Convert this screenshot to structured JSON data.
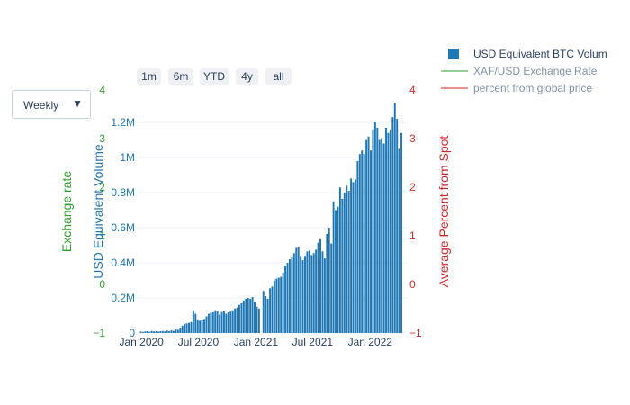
{
  "dropdown": {
    "value": "Weekly",
    "arrow_icon": "triangle-down-icon"
  },
  "range_buttons": [
    "1m",
    "6m",
    "YTD",
    "4y",
    "all"
  ],
  "legend": [
    {
      "label": "USD Equivalent BTC Volum",
      "color": "#1f77b4",
      "kind": "bar",
      "active": true
    },
    {
      "label": "XAF/USD Exchange Rate",
      "color": "#2ca02c",
      "kind": "line",
      "active": false
    },
    {
      "label": "percent from global price",
      "color": "#d62728",
      "kind": "line",
      "active": false
    }
  ],
  "colors": {
    "volume_axis": "#1f77b4",
    "exchange_axis": "#2ca02c",
    "percent_axis": "#d62728",
    "muted_legend": "#8592a6",
    "grid": "#ebf0f8"
  },
  "chart_data": {
    "type": "bar",
    "x_ticks": [
      "Jan 2020",
      "Jul 2020",
      "Jan 2021",
      "Jul 2021",
      "Jan 2022"
    ],
    "x_range": [
      "2019-12-20",
      "2022-05-01"
    ],
    "bar_interval": "weekly",
    "first_bar_date": "2019-12-30",
    "series": [
      {
        "name": "USD Equivalent BTC Volum",
        "axis": "y1",
        "values": [
          8000,
          6000,
          9000,
          10000,
          7000,
          12000,
          9000,
          11000,
          8000,
          10000,
          12000,
          9000,
          14000,
          10000,
          15000,
          12000,
          20000,
          18000,
          30000,
          42000,
          52000,
          55000,
          58000,
          62000,
          130000,
          110000,
          78000,
          70000,
          72000,
          80000,
          95000,
          110000,
          115000,
          118000,
          130000,
          125000,
          105000,
          120000,
          125000,
          110000,
          118000,
          122000,
          130000,
          140000,
          145000,
          160000,
          170000,
          185000,
          195000,
          200000,
          195000,
          205000,
          175000,
          150000,
          140000,
          0,
          240000,
          210000,
          195000,
          255000,
          265000,
          300000,
          310000,
          315000,
          320000,
          345000,
          380000,
          400000,
          420000,
          430000,
          455000,
          485000,
          490000,
          440000,
          415000,
          440000,
          465000,
          470000,
          445000,
          455000,
          475000,
          515000,
          535000,
          465000,
          425000,
          565000,
          600000,
          510000,
          750000,
          700000,
          720000,
          830000,
          765000,
          800000,
          840000,
          810000,
          880000,
          860000,
          875000,
          980000,
          1020000,
          1040000,
          1020000,
          1100000,
          1120000,
          1040000,
          1160000,
          1200000,
          1170000,
          1100000,
          1110000,
          1080000,
          1170000,
          1140000,
          1160000,
          1230000,
          1310000,
          1220000,
          1050000,
          1140000
        ]
      }
    ],
    "y1": {
      "title": "USD Equivalent Volume",
      "range": [
        0,
        1385000
      ],
      "tick_values": [
        0,
        200000,
        400000,
        600000,
        800000,
        1000000,
        1200000
      ],
      "tick_labels": [
        "0",
        "0.2M",
        "0.4M",
        "0.6M",
        "0.8M",
        "1M",
        "1.2M"
      ]
    },
    "y2": {
      "title": "Exchange rate",
      "range": [
        -1,
        4
      ],
      "tick_labels": [
        "−1",
        "0",
        "1",
        "2",
        "3",
        "4"
      ]
    },
    "y3": {
      "title": "Average Percent from Spot",
      "range": [
        -1,
        4
      ],
      "tick_labels": [
        "−1",
        "0",
        "1",
        "2",
        "3",
        "4"
      ]
    },
    "grid": true,
    "legend_position": "top-right"
  }
}
